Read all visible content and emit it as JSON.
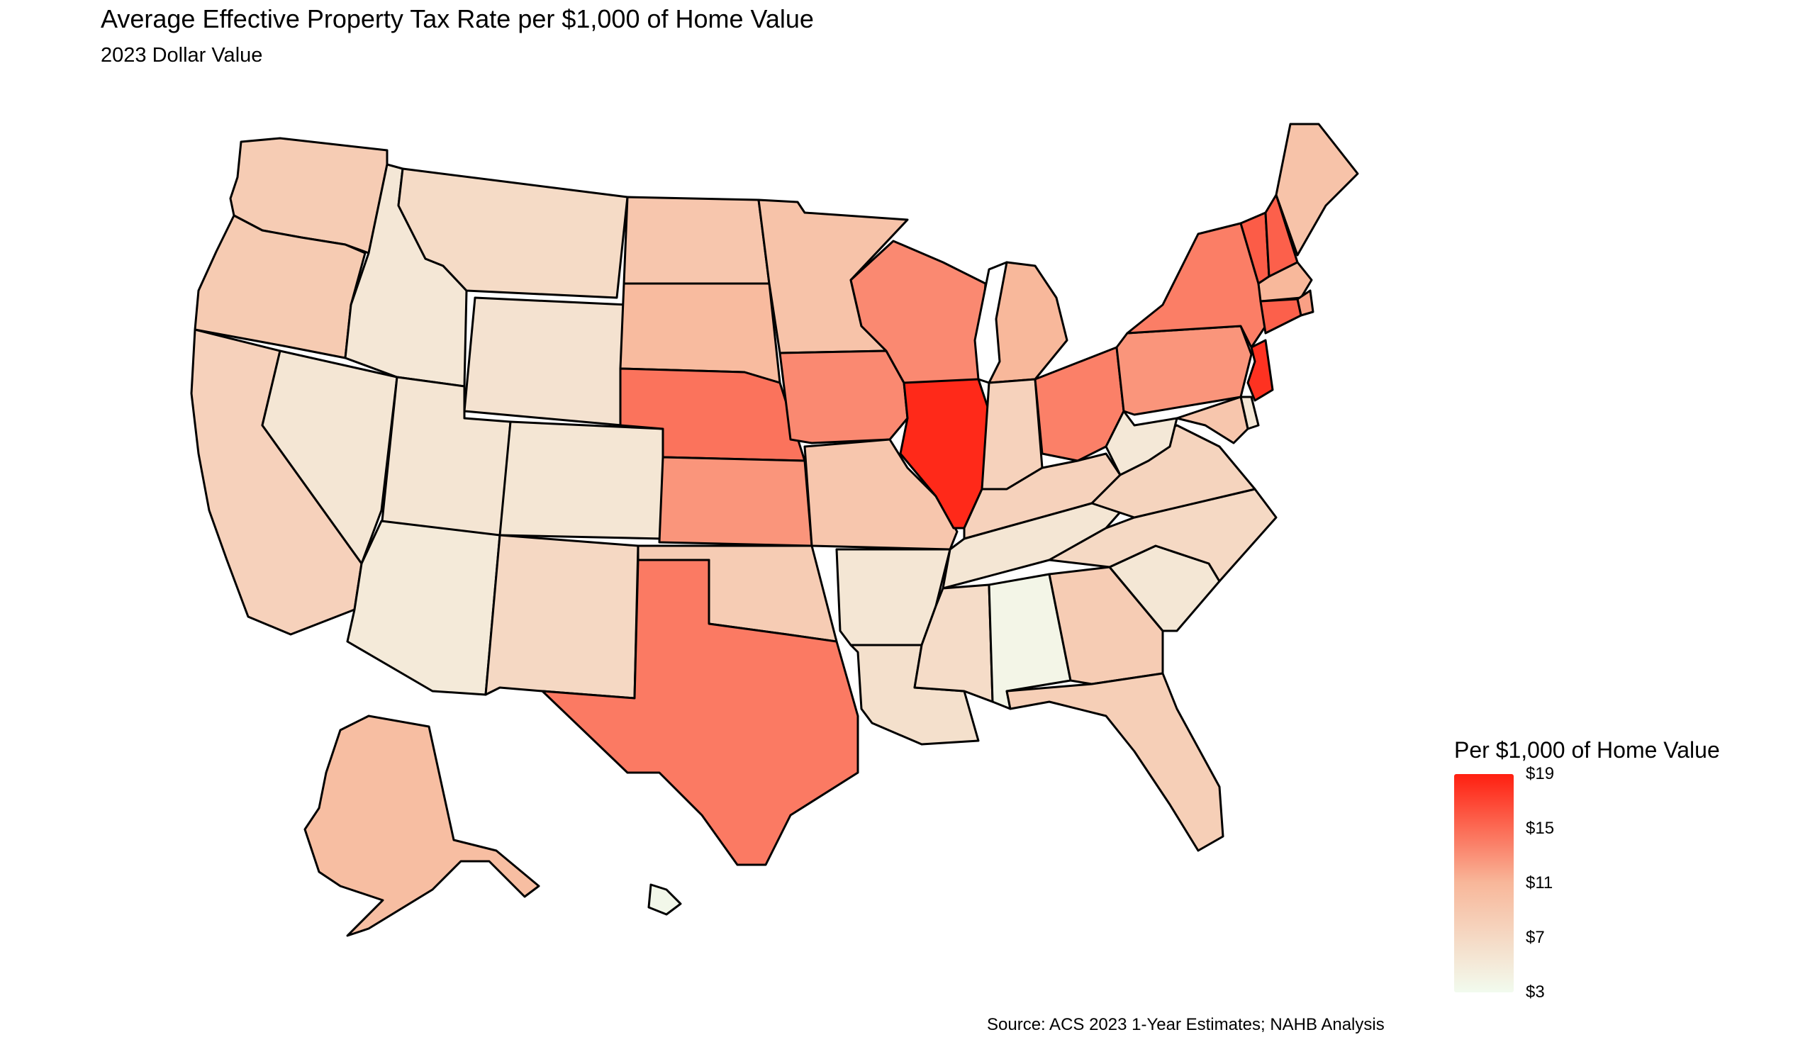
{
  "header": {
    "title": "Average Effective Property Tax Rate per $1,000 of Home Value",
    "subtitle": "2023 Dollar Value"
  },
  "source": "Source: ACS 2023 1-Year Estimates; NAHB Analysis",
  "legend": {
    "title": "Per $1,000 of Home Value",
    "min": 3,
    "max": 19,
    "ticks": [
      {
        "value": 19,
        "label": "$19"
      },
      {
        "value": 15,
        "label": "$15"
      },
      {
        "value": 11,
        "label": "$11"
      },
      {
        "value": 7,
        "label": "$7"
      },
      {
        "value": 3,
        "label": "$3"
      }
    ],
    "colors": {
      "low": "#f2fbee",
      "mid": "#f8b79a",
      "high": "#ff1f10"
    }
  },
  "map_data": {
    "type": "choropleth",
    "region": "United States",
    "states": [
      {
        "state": "WA",
        "value": 8.5
      },
      {
        "state": "OR",
        "value": 8.7
      },
      {
        "state": "CA",
        "value": 7.9
      },
      {
        "state": "ID",
        "value": 5.3
      },
      {
        "state": "NV",
        "value": 5.5
      },
      {
        "state": "MT",
        "value": 6.8
      },
      {
        "state": "WY",
        "value": 5.9
      },
      {
        "state": "UT",
        "value": 5.6
      },
      {
        "state": "CO",
        "value": 5.5
      },
      {
        "state": "AZ",
        "value": 5.0
      },
      {
        "state": "NM",
        "value": 7.1
      },
      {
        "state": "ND",
        "value": 9.2
      },
      {
        "state": "SD",
        "value": 10.5
      },
      {
        "state": "NE",
        "value": 14.6
      },
      {
        "state": "KS",
        "value": 12.8
      },
      {
        "state": "OK",
        "value": 8.5
      },
      {
        "state": "TX",
        "value": 14.2
      },
      {
        "state": "MN",
        "value": 9.6
      },
      {
        "state": "IA",
        "value": 13.4
      },
      {
        "state": "MO",
        "value": 9.2
      },
      {
        "state": "AR",
        "value": 5.5
      },
      {
        "state": "LA",
        "value": 6.2
      },
      {
        "state": "WI",
        "value": 13.4
      },
      {
        "state": "IL",
        "value": 18.5
      },
      {
        "state": "MI",
        "value": 10.9
      },
      {
        "state": "IN",
        "value": 7.8
      },
      {
        "state": "OH",
        "value": 13.9
      },
      {
        "state": "KY",
        "value": 7.8
      },
      {
        "state": "TN",
        "value": 5.5
      },
      {
        "state": "MS",
        "value": 6.6
      },
      {
        "state": "AL",
        "value": 3.7
      },
      {
        "state": "GA",
        "value": 8.5
      },
      {
        "state": "FL",
        "value": 8.2
      },
      {
        "state": "SC",
        "value": 5.4
      },
      {
        "state": "NC",
        "value": 7.0
      },
      {
        "state": "VA",
        "value": 7.6
      },
      {
        "state": "WV",
        "value": 5.2
      },
      {
        "state": "PA",
        "value": 12.8
      },
      {
        "state": "NY",
        "value": 14.0
      },
      {
        "state": "VT",
        "value": 15.8
      },
      {
        "state": "NH",
        "value": 15.6
      },
      {
        "state": "ME",
        "value": 9.6
      },
      {
        "state": "MA",
        "value": 10.9
      },
      {
        "state": "RI",
        "value": 12.2
      },
      {
        "state": "CT",
        "value": 15.6
      },
      {
        "state": "NJ",
        "value": 18.0
      },
      {
        "state": "DE",
        "value": 5.3
      },
      {
        "state": "MD",
        "value": 9.2
      },
      {
        "state": "AK",
        "value": 10.2
      },
      {
        "state": "HI",
        "value": 3.5
      }
    ]
  }
}
